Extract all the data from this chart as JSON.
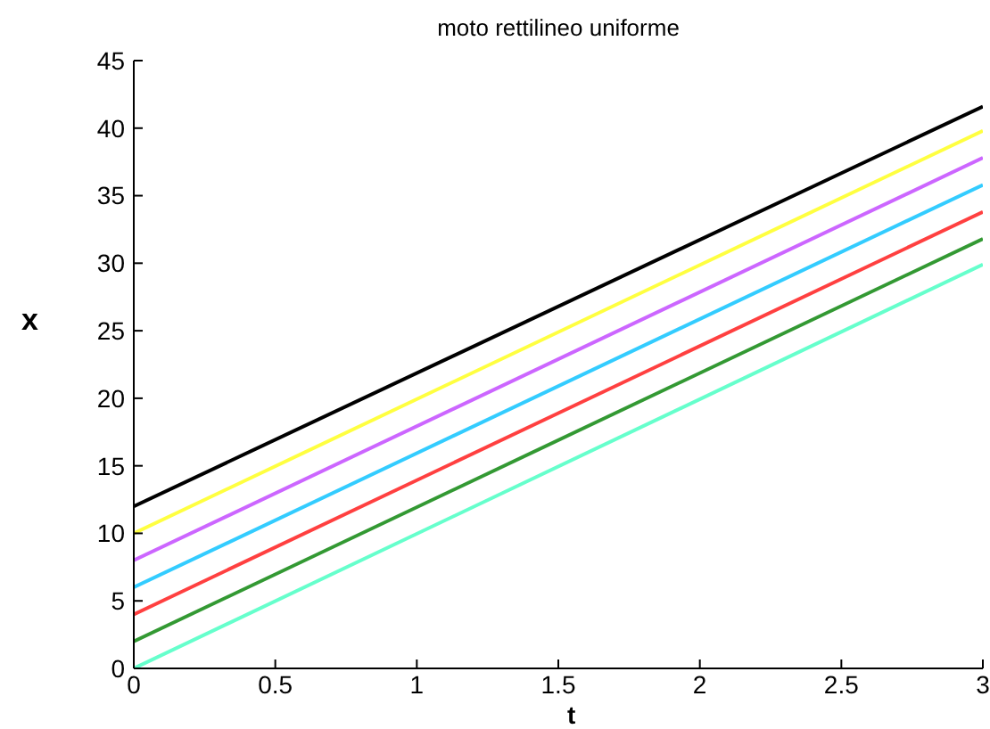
{
  "chart_data": {
    "type": "line",
    "title": "moto rettilineo uniforme",
    "xlabel": "t",
    "ylabel": "x",
    "x": [
      0,
      3
    ],
    "series": [
      {
        "color": "#000000",
        "values": [
          12,
          41.6
        ]
      },
      {
        "color": "#ffff40",
        "values": [
          10,
          39.8
        ]
      },
      {
        "color": "#cc66ff",
        "values": [
          8,
          37.8
        ]
      },
      {
        "color": "#33ccff",
        "values": [
          6,
          35.8
        ]
      },
      {
        "color": "#ff4040",
        "values": [
          4,
          33.8
        ]
      },
      {
        "color": "#339933",
        "values": [
          2,
          31.8
        ]
      },
      {
        "color": "#66ffcc",
        "values": [
          0,
          29.9
        ]
      }
    ],
    "xlim": [
      0,
      3
    ],
    "xticks": [
      0,
      0.5,
      1,
      1.5,
      2,
      2.5,
      3
    ],
    "ylim": [
      0,
      45
    ],
    "yticks": [
      0,
      5,
      10,
      15,
      20,
      25,
      30,
      35,
      40,
      45
    ],
    "grid": false,
    "legend": false,
    "marker": "none",
    "line_style": "solid"
  }
}
